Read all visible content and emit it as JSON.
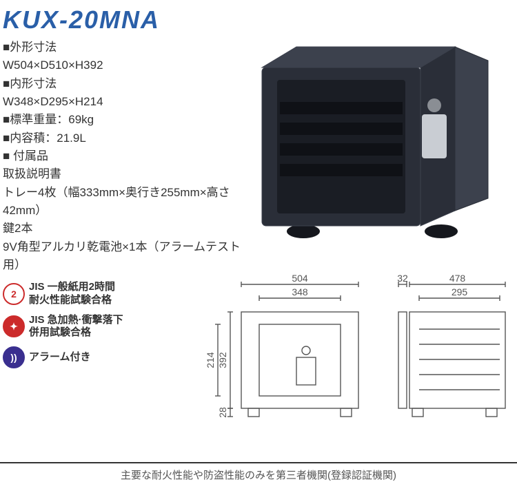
{
  "title": {
    "text": "KUX-20MNA",
    "color": "#2a5fa8"
  },
  "specs": {
    "lines": [
      "■外形寸法",
      "W504×D510×H392",
      "■内形寸法",
      "W348×D295×H214",
      "■標準重量：69kg",
      "■内容積：21.9L",
      "■ 付属品",
      "取扱説明書",
      "トレー4枚（幅333mm×奥行き255mm×高さ42mm）",
      "鍵2本",
      "9V角型アルカリ乾電池×1本（アラームテスト用）"
    ]
  },
  "safe": {
    "body_color": "#2a2e38",
    "border_color": "#3c414d",
    "interior_color": "#1a1d24",
    "shelf_color": "#0f1116",
    "panel_color": "#c9cdd3",
    "knob_color": "#8a8e94",
    "foot_color": "#15171d"
  },
  "certs": [
    {
      "bg": "#ffffff",
      "ring": "#cc2b2b",
      "inner": "#cc2b2b",
      "glyph": "2",
      "glyph_color": "#cc2b2b",
      "line1": "JIS 一般紙用2時間",
      "line2": "耐火性能試験合格"
    },
    {
      "bg": "#cc2b2b",
      "ring": "#cc2b2b",
      "inner": "#ffffff",
      "glyph": "✦",
      "glyph_color": "#ffffff",
      "line1": "JIS 急加熱·衝撃落下",
      "line2": "併用試験合格"
    },
    {
      "bg": "#3a2f8f",
      "ring": "#3a2f8f",
      "inner": "#ffffff",
      "glyph": "))",
      "glyph_color": "#ffffff",
      "line1": "アラーム付き",
      "line2": ""
    }
  ],
  "diagram": {
    "stroke": "#555555",
    "fill": "#ffffff",
    "dims": {
      "w504": "504",
      "w348": "348",
      "d32": "32",
      "d478": "478",
      "d295": "295",
      "h392": "392",
      "h214": "214",
      "h28": "28"
    }
  },
  "footer": "主要な耐火性能や防盗性能のみを第三者機関(登録認証機関)"
}
